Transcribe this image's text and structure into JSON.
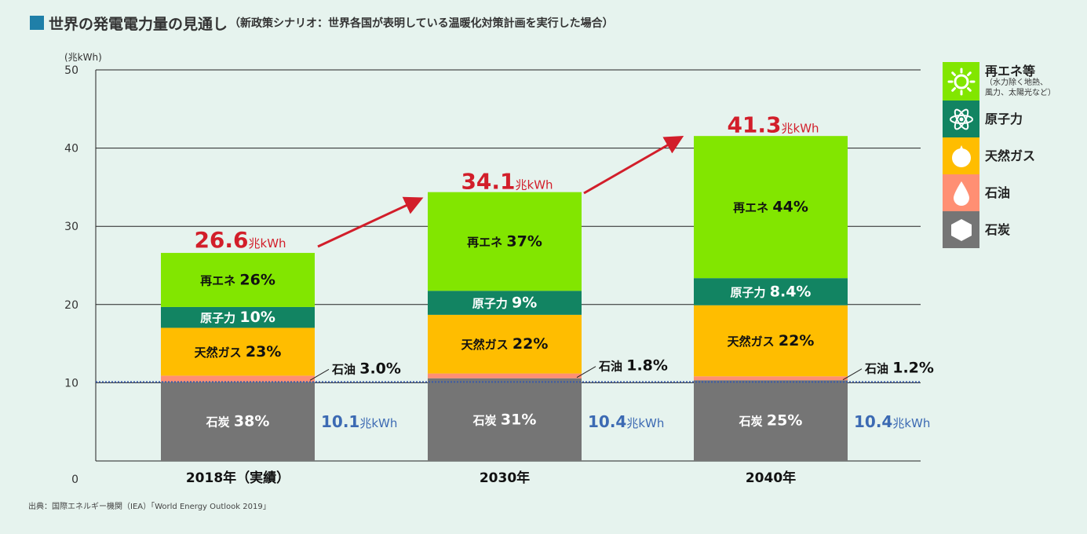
{
  "title": {
    "main": "世界の発電電力量の見通し",
    "sub": "（新政策シナリオ：世界各国が表明している温暖化対策計画を実行した場合）"
  },
  "unit_label": "(兆kWh)",
  "source": "出典：国際エネルギー機関（IEA）「World Energy Outlook 2019」",
  "colors": {
    "title_square": "#1f7fa8",
    "renewable": "#82e600",
    "nuclear": "#128462",
    "gas": "#ffbd00",
    "oil": "#ff8f73",
    "coal": "#757575",
    "total_label": "#d21e2a",
    "coal_value_label": "#3c6ab3",
    "arrow": "#d21e2a",
    "dotted_line": "#3a5aa8"
  },
  "legend": [
    {
      "key": "renewable",
      "label": "再エネ等",
      "note_lines": [
        "（水力除く地熱、",
        "風力、太陽光など）"
      ],
      "icon": "sun-icon"
    },
    {
      "key": "nuclear",
      "label": "原子力",
      "icon": "atom-icon"
    },
    {
      "key": "gas",
      "label": "天然ガス",
      "icon": "gas-flame-icon"
    },
    {
      "key": "oil",
      "label": "石油",
      "icon": "oil-drop-icon"
    },
    {
      "key": "coal",
      "label": "石炭",
      "icon": "coal-hexagon-icon"
    }
  ],
  "chart_data": {
    "type": "bar",
    "stacked": true,
    "title": "世界の発電電力量の見通し",
    "ylabel": "(兆kWh)",
    "ylim": [
      0,
      50
    ],
    "yticks": [
      0,
      10,
      20,
      30,
      40,
      50
    ],
    "grid": true,
    "categories": [
      "2018年（実績）",
      "2030年",
      "2040年"
    ],
    "totals": [
      26.6,
      34.1,
      41.3
    ],
    "total_value_labels": [
      "26.6",
      "34.1",
      "41.3"
    ],
    "total_unit_labels": [
      "兆kWh",
      "兆kWh",
      "兆kWh"
    ],
    "coal_and_oil_values": [
      10.1,
      10.4,
      10.4
    ],
    "coal_and_oil_value_labels": [
      "10.1",
      "10.4",
      "10.4"
    ],
    "coal_and_oil_unit_labels": [
      "兆kWh",
      "兆kWh",
      "兆kWh"
    ],
    "series": [
      {
        "key": "coal",
        "name": "石炭",
        "label_prefix": [
          "石炭",
          "石炭",
          "石炭"
        ],
        "values_pct": [
          38,
          31,
          25
        ],
        "value_labels": [
          "38%",
          "31%",
          "25%"
        ]
      },
      {
        "key": "oil",
        "name": "石油",
        "label_prefix": [
          "石油",
          "石油",
          "石油"
        ],
        "values_pct": [
          3.0,
          1.8,
          1.2
        ],
        "value_labels": [
          "3.0%",
          "1.8%",
          "1.2%"
        ]
      },
      {
        "key": "gas",
        "name": "天然ガス",
        "label_prefix": [
          "天然ガス",
          "天然ガス",
          "天然ガス"
        ],
        "values_pct": [
          23,
          22,
          22
        ],
        "value_labels": [
          "23%",
          "22%",
          "22%"
        ]
      },
      {
        "key": "nuclear",
        "name": "原子力",
        "label_prefix": [
          "原子力",
          "原子力",
          "原子力"
        ],
        "values_pct": [
          10,
          9,
          8.4
        ],
        "value_labels": [
          "10%",
          "9%",
          "8.4%"
        ]
      },
      {
        "key": "renewable",
        "name": "再エネ",
        "label_prefix": [
          "再エネ",
          "再エネ",
          "再エネ"
        ],
        "values_pct": [
          26,
          37,
          44
        ],
        "value_labels": [
          "26%",
          "37%",
          "44%"
        ]
      }
    ]
  }
}
